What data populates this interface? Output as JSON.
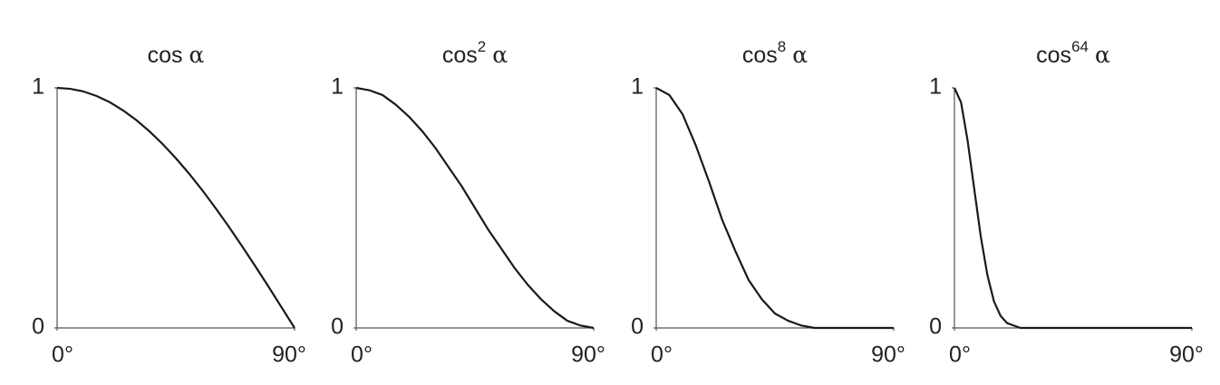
{
  "chart_data": [
    {
      "type": "line",
      "title": "cos",
      "symbol": "α",
      "x": [
        0,
        5,
        10,
        15,
        20,
        25,
        30,
        35,
        40,
        45,
        50,
        55,
        60,
        65,
        70,
        75,
        80,
        85,
        90
      ],
      "values": [
        1,
        0.996,
        0.985,
        0.966,
        0.94,
        0.906,
        0.866,
        0.819,
        0.766,
        0.707,
        0.643,
        0.574,
        0.5,
        0.423,
        0.342,
        0.259,
        0.174,
        0.087,
        0
      ],
      "xlim": [
        0,
        90
      ],
      "ylim": [
        0,
        1
      ],
      "xticks": [
        {
          "value": 0,
          "label": "0°"
        },
        {
          "value": 90,
          "label": "90°"
        }
      ],
      "yticks": [
        0,
        1
      ],
      "color": "#1a1a1a"
    },
    {
      "type": "line",
      "title": "cos",
      "superscript": "2",
      "symbol": "α",
      "x": [
        0,
        5,
        10,
        15,
        20,
        25,
        30,
        35,
        40,
        45,
        50,
        55,
        60,
        65,
        70,
        75,
        80,
        85,
        90
      ],
      "values": [
        1,
        0.99,
        0.97,
        0.93,
        0.88,
        0.82,
        0.75,
        0.67,
        0.59,
        0.5,
        0.41,
        0.33,
        0.25,
        0.18,
        0.12,
        0.07,
        0.03,
        0.01,
        0
      ],
      "xlim": [
        0,
        90
      ],
      "ylim": [
        0,
        1
      ],
      "xticks": [
        {
          "value": 0,
          "label": "0°"
        },
        {
          "value": 90,
          "label": "90°"
        }
      ],
      "yticks": [
        0,
        1
      ],
      "color": "#1a1a1a"
    },
    {
      "type": "line",
      "title": "cos",
      "superscript": "8",
      "symbol": "α",
      "x": [
        0,
        5,
        10,
        15,
        20,
        25,
        30,
        35,
        40,
        45,
        50,
        55,
        60,
        65,
        70,
        75,
        80,
        85,
        90
      ],
      "values": [
        1,
        0.97,
        0.89,
        0.76,
        0.61,
        0.45,
        0.32,
        0.2,
        0.12,
        0.06,
        0.03,
        0.01,
        0,
        0,
        0,
        0,
        0,
        0,
        0
      ],
      "xlim": [
        0,
        90
      ],
      "ylim": [
        0,
        1
      ],
      "xticks": [
        {
          "value": 0,
          "label": "0°"
        },
        {
          "value": 90,
          "label": "90°"
        }
      ],
      "yticks": [
        0,
        1
      ],
      "color": "#1a1a1a"
    },
    {
      "type": "line",
      "title": "cos",
      "superscript": "64",
      "symbol": "α",
      "x": [
        0,
        2.5,
        5,
        7.5,
        10,
        12.5,
        15,
        17.5,
        20,
        22.5,
        25,
        30,
        35,
        40,
        45,
        50,
        55,
        60,
        65,
        70,
        75,
        80,
        85,
        90
      ],
      "values": [
        1,
        0.94,
        0.78,
        0.58,
        0.38,
        0.22,
        0.11,
        0.05,
        0.02,
        0.01,
        0,
        0,
        0,
        0,
        0,
        0,
        0,
        0,
        0,
        0,
        0,
        0,
        0,
        0
      ],
      "xlim": [
        0,
        90
      ],
      "ylim": [
        0,
        1
      ],
      "xticks": [
        {
          "value": 0,
          "label": "0°"
        },
        {
          "value": 90,
          "label": "90°"
        }
      ],
      "yticks": [
        0,
        1
      ],
      "color": "#1a1a1a"
    }
  ]
}
